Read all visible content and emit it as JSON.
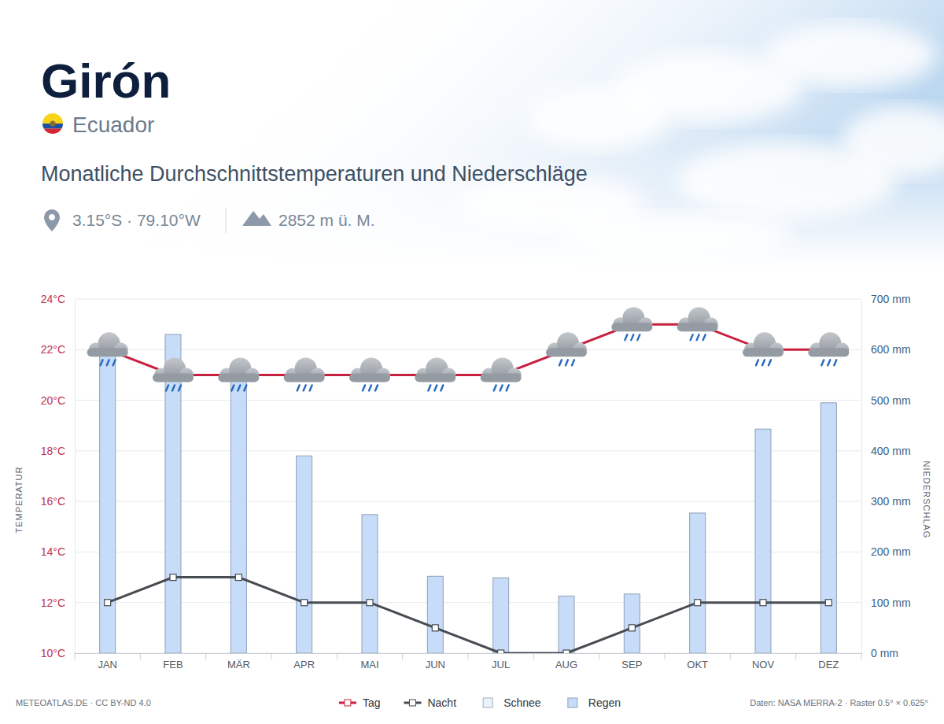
{
  "chart_data": {
    "type": "combo",
    "title": "Girón",
    "subtitle": "Ecuador",
    "annotations": {
      "heading": "Monatliche Durchschnittstemperaturen und Niederschläge",
      "coordinates": "3.15°S · 79.10°W",
      "elevation": "2852 m ü. M.",
      "credit": "METEOATLAS.DE · CC BY-ND 4.0",
      "data_source": "Daten: NASA MERRA-2 · Raster 0.5° × 0.625°"
    },
    "y_label": "TEMPERATUR",
    "y2_label": "NIEDERSCHLAG",
    "categories": [
      "JAN",
      "FEB",
      "MÄR",
      "APR",
      "MAI",
      "JUN",
      "JUL",
      "AUG",
      "SEP",
      "OKT",
      "NOV",
      "DEZ"
    ],
    "ylim": [
      10,
      24
    ],
    "yticks": [
      {
        "value": 10,
        "label": "10°C"
      },
      {
        "value": 12,
        "label": "12°C"
      },
      {
        "value": 14,
        "label": "14°C"
      },
      {
        "value": 16,
        "label": "16°C"
      },
      {
        "value": 18,
        "label": "18°C"
      },
      {
        "value": 20,
        "label": "20°C"
      },
      {
        "value": 22,
        "label": "22°C"
      },
      {
        "value": 24,
        "label": "24°C"
      }
    ],
    "y2lim": [
      0,
      700
    ],
    "y2ticks": [
      {
        "value": 0,
        "label": "0 mm"
      },
      {
        "value": 100,
        "label": "100 mm"
      },
      {
        "value": 200,
        "label": "200 mm"
      },
      {
        "value": 300,
        "label": "300 mm"
      },
      {
        "value": 400,
        "label": "400 mm"
      },
      {
        "value": 500,
        "label": "500 mm"
      },
      {
        "value": 600,
        "label": "600 mm"
      },
      {
        "value": 700,
        "label": "700 mm"
      }
    ],
    "grid": true,
    "legend": "bottom",
    "stacked": true,
    "series": [
      {
        "name": "Tag",
        "type": "line",
        "color": "#c8203f",
        "marker": "square",
        "values": [
          22,
          21,
          21,
          21,
          21,
          21,
          21,
          22,
          23,
          23,
          22,
          22
        ]
      },
      {
        "name": "Nacht",
        "type": "line",
        "color": "#474b52",
        "marker": "square",
        "values": [
          12,
          13,
          13,
          12,
          12,
          11,
          10,
          10,
          11,
          12,
          12,
          12
        ]
      },
      {
        "name": "Schnee",
        "type": "bar",
        "axis": "y2",
        "color": "#eaf2fc",
        "values": [
          0,
          0,
          0,
          0,
          0,
          0,
          0,
          0,
          0,
          0,
          0,
          0
        ]
      },
      {
        "name": "Regen",
        "type": "bar",
        "axis": "y2",
        "color": "#c6dcf8",
        "values": [
          590,
          630,
          570,
          390,
          274,
          152,
          149,
          113,
          117,
          277,
          443,
          495
        ]
      }
    ]
  }
}
